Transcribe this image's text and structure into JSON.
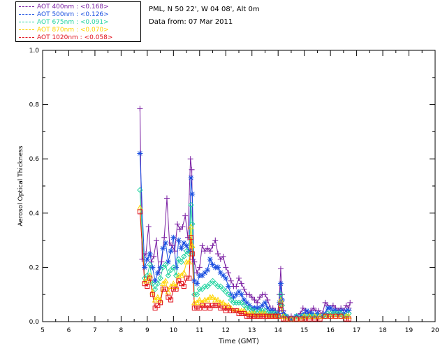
{
  "header": {
    "location": "PML, N 50 22', W 04 08', Alt 0m",
    "date_line": "Data from: 07 Mar 2011"
  },
  "chart_data": {
    "type": "scatter",
    "xlabel": "Time (GMT)",
    "ylabel": "Aerosol Optical Thickness",
    "xlim": [
      5,
      20
    ],
    "ylim": [
      0.0,
      1.0
    ],
    "xticks": [
      "5",
      "6",
      "7",
      "8",
      "9",
      "10",
      "11",
      "12",
      "13",
      "14",
      "15",
      "16",
      "17",
      "18",
      "19",
      "20"
    ],
    "yticks": [
      "0.0",
      "0.2",
      "0.4",
      "0.6",
      "0.8",
      "1.0"
    ],
    "legend_position": "top-left",
    "series": [
      {
        "name": "AOT  400nm : <0.168>",
        "color": "#7a1fa2",
        "marker": "plus",
        "x": [
          8.72,
          8.8,
          8.95,
          9.05,
          9.15,
          9.25,
          9.35,
          9.45,
          9.55,
          9.65,
          9.75,
          9.85,
          9.95,
          10.05,
          10.15,
          10.25,
          10.35,
          10.45,
          10.55,
          10.65,
          10.7,
          10.75,
          10.8,
          10.9,
          11.0,
          11.1,
          11.2,
          11.3,
          11.4,
          11.5,
          11.6,
          11.7,
          11.8,
          11.9,
          12.0,
          12.1,
          12.2,
          12.3,
          12.4,
          12.5,
          12.6,
          12.7,
          12.8,
          12.9,
          13.0,
          13.1,
          13.2,
          13.3,
          13.4,
          13.5,
          13.6,
          13.7,
          13.8,
          13.9,
          14.0,
          14.05,
          14.1,
          14.15,
          14.2,
          14.3,
          14.4,
          14.5,
          14.7,
          14.85,
          14.95,
          15.05,
          15.15,
          15.25,
          15.35,
          15.45,
          15.55,
          15.7,
          15.8,
          15.9,
          16.0,
          16.1,
          16.2,
          16.3,
          16.4,
          16.5,
          16.6,
          16.7,
          16.75
        ],
        "y": [
          0.785,
          0.23,
          0.25,
          0.35,
          0.22,
          0.24,
          0.3,
          0.18,
          0.22,
          0.31,
          0.455,
          0.29,
          0.28,
          0.26,
          0.36,
          0.34,
          0.35,
          0.39,
          0.31,
          0.6,
          0.56,
          0.23,
          0.22,
          0.18,
          0.2,
          0.28,
          0.26,
          0.27,
          0.26,
          0.28,
          0.3,
          0.25,
          0.23,
          0.24,
          0.2,
          0.18,
          0.15,
          0.13,
          0.13,
          0.16,
          0.14,
          0.12,
          0.1,
          0.1,
          0.09,
          0.08,
          0.07,
          0.09,
          0.1,
          0.1,
          0.08,
          0.05,
          0.05,
          0.04,
          0.04,
          0.1,
          0.195,
          0.1,
          0.04,
          0.02,
          0.015,
          0.02,
          0.02,
          0.03,
          0.05,
          0.04,
          0.03,
          0.04,
          0.05,
          0.04,
          0.04,
          0.03,
          0.07,
          0.06,
          0.05,
          0.06,
          0.05,
          0.04,
          0.05,
          0.04,
          0.06,
          0.05,
          0.07
        ]
      },
      {
        "name": "AOT  500nm : <0.126>",
        "color": "#1a4fe0",
        "marker": "star",
        "x": [
          8.72,
          8.9,
          9.0,
          9.1,
          9.2,
          9.3,
          9.4,
          9.5,
          9.6,
          9.7,
          9.8,
          9.9,
          10.0,
          10.1,
          10.2,
          10.3,
          10.4,
          10.5,
          10.6,
          10.67,
          10.72,
          10.8,
          10.9,
          11.0,
          11.1,
          11.2,
          11.3,
          11.4,
          11.5,
          11.6,
          11.7,
          11.8,
          11.9,
          12.0,
          12.1,
          12.2,
          12.3,
          12.4,
          12.5,
          12.6,
          12.7,
          12.8,
          12.9,
          13.0,
          13.1,
          13.2,
          13.3,
          13.4,
          13.5,
          13.6,
          13.7,
          13.8,
          13.9,
          14.0,
          14.05,
          14.1,
          14.15,
          14.2,
          14.3,
          14.5,
          14.7,
          14.9,
          15.0,
          15.1,
          15.2,
          15.3,
          15.4,
          15.5,
          15.7,
          15.8,
          15.9,
          16.0,
          16.1,
          16.2,
          16.3,
          16.4,
          16.5,
          16.6,
          16.7
        ],
        "y": [
          0.62,
          0.2,
          0.23,
          0.25,
          0.2,
          0.15,
          0.18,
          0.2,
          0.27,
          0.29,
          0.22,
          0.26,
          0.31,
          0.2,
          0.3,
          0.27,
          0.29,
          0.28,
          0.26,
          0.53,
          0.47,
          0.15,
          0.14,
          0.17,
          0.17,
          0.18,
          0.19,
          0.23,
          0.21,
          0.2,
          0.2,
          0.18,
          0.17,
          0.16,
          0.13,
          0.1,
          0.09,
          0.1,
          0.11,
          0.1,
          0.08,
          0.07,
          0.06,
          0.05,
          0.05,
          0.05,
          0.05,
          0.06,
          0.07,
          0.05,
          0.04,
          0.04,
          0.03,
          0.03,
          0.07,
          0.14,
          0.08,
          0.03,
          0.02,
          0.01,
          0.02,
          0.02,
          0.03,
          0.04,
          0.03,
          0.03,
          0.02,
          0.03,
          0.02,
          0.03,
          0.05,
          0.05,
          0.04,
          0.04,
          0.03,
          0.04,
          0.03,
          0.04,
          0.04
        ]
      },
      {
        "name": "AOT  675nm : <0.091>",
        "color": "#22d4a0",
        "marker": "diamond",
        "x": [
          8.72,
          8.9,
          9.0,
          9.1,
          9.2,
          9.3,
          9.4,
          9.5,
          9.6,
          9.7,
          9.8,
          9.9,
          10.0,
          10.1,
          10.2,
          10.3,
          10.4,
          10.5,
          10.6,
          10.67,
          10.72,
          10.8,
          10.9,
          11.0,
          11.1,
          11.2,
          11.3,
          11.4,
          11.5,
          11.6,
          11.7,
          11.8,
          11.9,
          12.0,
          12.1,
          12.2,
          12.3,
          12.4,
          12.5,
          12.6,
          12.7,
          12.8,
          12.9,
          13.0,
          13.1,
          13.2,
          13.3,
          13.4,
          13.5,
          13.6,
          13.7,
          13.8,
          13.9,
          14.0,
          14.1,
          14.15,
          14.2,
          14.3,
          14.5,
          14.7,
          14.9,
          15.0,
          15.1,
          15.2,
          15.3,
          15.4,
          15.5,
          15.7,
          15.8,
          15.9,
          16.0,
          16.1,
          16.2,
          16.3,
          16.4,
          16.5,
          16.6,
          16.7
        ],
        "y": [
          0.485,
          0.16,
          0.17,
          0.21,
          0.14,
          0.12,
          0.14,
          0.16,
          0.2,
          0.21,
          0.17,
          0.19,
          0.2,
          0.17,
          0.23,
          0.22,
          0.24,
          0.26,
          0.25,
          0.43,
          0.36,
          0.1,
          0.1,
          0.12,
          0.12,
          0.13,
          0.13,
          0.14,
          0.15,
          0.14,
          0.13,
          0.13,
          0.12,
          0.11,
          0.1,
          0.08,
          0.07,
          0.07,
          0.07,
          0.07,
          0.06,
          0.05,
          0.05,
          0.04,
          0.04,
          0.03,
          0.04,
          0.04,
          0.04,
          0.03,
          0.03,
          0.03,
          0.03,
          0.02,
          0.1,
          0.06,
          0.02,
          0.02,
          0.01,
          0.02,
          0.02,
          0.02,
          0.02,
          0.02,
          0.02,
          0.02,
          0.02,
          0.02,
          0.02,
          0.03,
          0.03,
          0.03,
          0.03,
          0.03,
          0.03,
          0.02,
          0.02,
          0.03
        ]
      },
      {
        "name": "AOT  870nm : <0.070>",
        "color": "#ffd400",
        "marker": "triangle",
        "x": [
          8.72,
          8.9,
          9.0,
          9.1,
          9.2,
          9.3,
          9.4,
          9.5,
          9.6,
          9.7,
          9.8,
          9.9,
          10.0,
          10.1,
          10.2,
          10.3,
          10.4,
          10.5,
          10.6,
          10.67,
          10.72,
          10.8,
          10.9,
          11.0,
          11.1,
          11.2,
          11.3,
          11.4,
          11.5,
          11.6,
          11.7,
          11.8,
          11.9,
          12.0,
          12.1,
          12.2,
          12.3,
          12.4,
          12.5,
          12.6,
          12.7,
          12.8,
          12.9,
          13.0,
          13.1,
          13.2,
          13.3,
          13.4,
          13.5,
          13.6,
          13.7,
          13.8,
          13.9,
          14.0,
          14.1,
          14.2,
          14.3,
          14.5,
          14.7,
          14.9,
          15.0,
          15.2,
          15.4,
          15.6,
          15.8,
          16.0,
          16.2,
          16.4,
          16.6,
          16.7
        ],
        "y": [
          0.42,
          0.15,
          0.15,
          0.17,
          0.11,
          0.08,
          0.09,
          0.08,
          0.14,
          0.15,
          0.11,
          0.13,
          0.14,
          0.13,
          0.17,
          0.17,
          0.18,
          0.22,
          0.22,
          0.35,
          0.28,
          0.07,
          0.07,
          0.08,
          0.07,
          0.08,
          0.08,
          0.09,
          0.09,
          0.08,
          0.08,
          0.07,
          0.07,
          0.06,
          0.06,
          0.05,
          0.04,
          0.04,
          0.04,
          0.04,
          0.04,
          0.03,
          0.03,
          0.03,
          0.03,
          0.02,
          0.03,
          0.03,
          0.03,
          0.02,
          0.02,
          0.02,
          0.02,
          0.02,
          0.08,
          0.02,
          0.01,
          0.01,
          0.01,
          0.01,
          0.02,
          0.02,
          0.02,
          0.02,
          0.02,
          0.02,
          0.02,
          0.02,
          0.02,
          0.02
        ]
      },
      {
        "name": "AOT 1020nm : <0.058>",
        "color": "#e0101a",
        "marker": "square",
        "x": [
          8.72,
          8.9,
          9.0,
          9.1,
          9.2,
          9.3,
          9.4,
          9.5,
          9.6,
          9.7,
          9.8,
          9.9,
          10.0,
          10.1,
          10.2,
          10.3,
          10.4,
          10.5,
          10.6,
          10.67,
          10.72,
          10.8,
          10.9,
          11.0,
          11.1,
          11.2,
          11.3,
          11.4,
          11.5,
          11.6,
          11.7,
          11.8,
          11.9,
          12.0,
          12.1,
          12.2,
          12.3,
          12.4,
          12.5,
          12.6,
          12.7,
          12.8,
          12.9,
          13.0,
          13.1,
          13.2,
          13.3,
          13.4,
          13.5,
          13.6,
          13.7,
          13.8,
          13.9,
          14.0,
          14.1,
          14.2,
          14.3,
          14.5,
          14.7,
          14.9,
          15.0,
          15.2,
          15.4,
          15.6,
          15.8,
          16.0,
          16.2,
          16.4,
          16.6,
          16.7
        ],
        "y": [
          0.405,
          0.14,
          0.13,
          0.16,
          0.1,
          0.05,
          0.06,
          0.07,
          0.12,
          0.12,
          0.09,
          0.08,
          0.12,
          0.12,
          0.15,
          0.14,
          0.13,
          0.16,
          0.16,
          0.31,
          0.25,
          0.05,
          0.05,
          0.05,
          0.06,
          0.05,
          0.06,
          0.05,
          0.06,
          0.06,
          0.06,
          0.05,
          0.05,
          0.04,
          0.05,
          0.04,
          0.04,
          0.04,
          0.03,
          0.03,
          0.03,
          0.02,
          0.02,
          0.02,
          0.02,
          0.02,
          0.02,
          0.02,
          0.02,
          0.02,
          0.02,
          0.02,
          0.02,
          0.02,
          0.06,
          0.01,
          0.01,
          0.01,
          0.01,
          0.01,
          0.01,
          0.01,
          0.01,
          0.01,
          0.02,
          0.02,
          0.02,
          0.02,
          0.01,
          0.01
        ]
      }
    ]
  }
}
